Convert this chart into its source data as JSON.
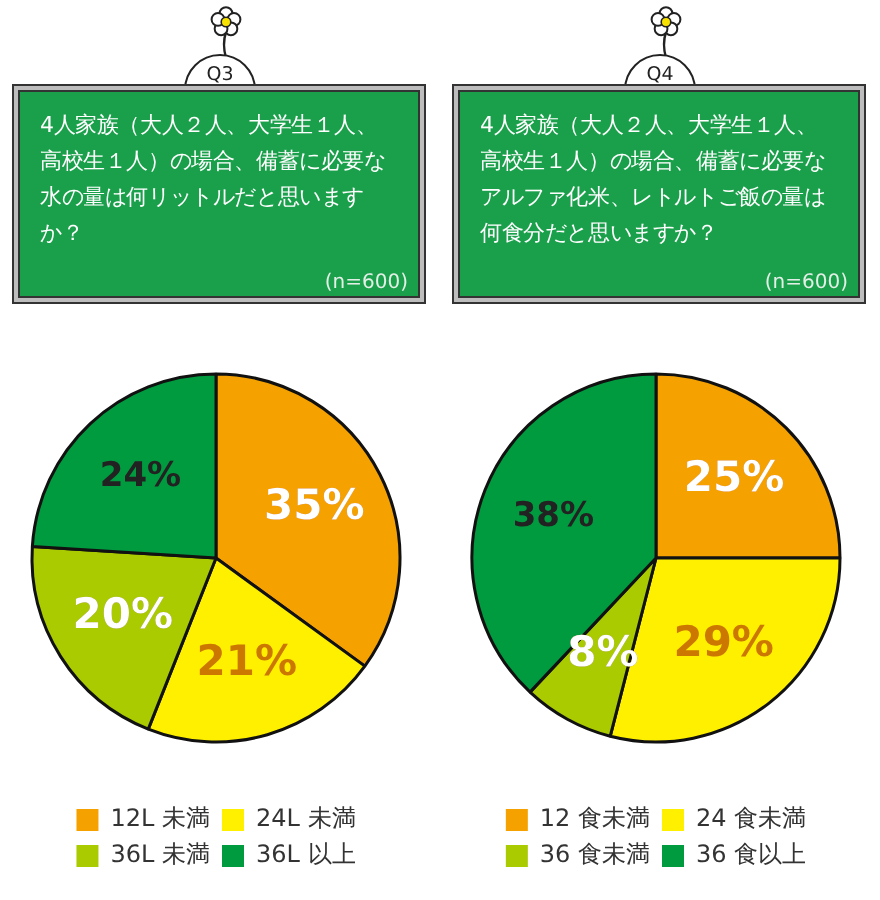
{
  "chart_data": [
    {
      "type": "pie",
      "title": "Q3",
      "subtitle": "4人家族（大人２人、大学生１人、高校生１人）の場合、備蓄に必要な水の量は何リットルだと思いますか？",
      "annotations": [
        "(n=600)"
      ],
      "categories": [
        "12L 未満",
        "24L 未満",
        "36L 未満",
        "36L 以上"
      ],
      "values": [
        35,
        21,
        20,
        24
      ],
      "colors": [
        "#f5a200",
        "#fff000",
        "#a9cb00",
        "#009a3f"
      ],
      "value_labels": [
        "35%",
        "21%",
        "20%",
        "24%"
      ],
      "legend": "bottom"
    },
    {
      "type": "pie",
      "title": "Q4",
      "subtitle": "4人家族（大人２人、大学生１人、高校生１人）の場合、備蓄に必要なアルファ化米、レトルトご飯の量は何食分だと思いますか？",
      "annotations": [
        "(n=600)"
      ],
      "categories": [
        "12 食未満",
        "24 食未満",
        "36 食未満",
        "36 食以上"
      ],
      "values": [
        25,
        29,
        8,
        38
      ],
      "colors": [
        "#f5a200",
        "#fff000",
        "#a9cb00",
        "#009a3f"
      ],
      "value_labels": [
        "25%",
        "29%",
        "8%",
        "38%"
      ],
      "legend": "bottom"
    }
  ]
}
